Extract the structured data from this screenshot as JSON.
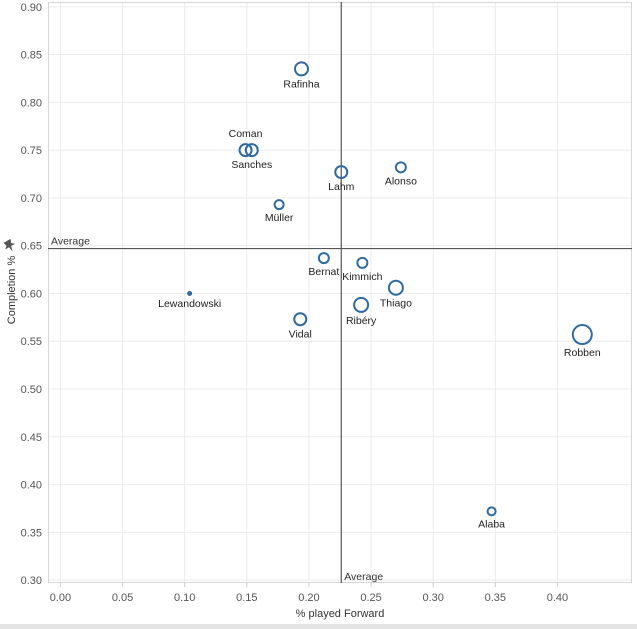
{
  "chart_data": {
    "type": "scatter",
    "xlabel": "% played Forward",
    "ylabel": "Completion %",
    "xlim": [
      -0.01,
      0.46
    ],
    "ylim": [
      0.297,
      0.905
    ],
    "x_ticks": [
      "0.00",
      "0.05",
      "0.10",
      "0.15",
      "0.20",
      "0.25",
      "0.30",
      "0.35",
      "0.40"
    ],
    "x_tick_values": [
      0,
      0.05,
      0.1,
      0.15,
      0.2,
      0.25,
      0.3,
      0.35,
      0.4
    ],
    "y_ticks": [
      "0.30",
      "0.35",
      "0.40",
      "0.45",
      "0.50",
      "0.55",
      "0.60",
      "0.65",
      "0.70",
      "0.75",
      "0.80",
      "0.85",
      "0.90"
    ],
    "y_tick_values": [
      0.3,
      0.35,
      0.4,
      0.45,
      0.5,
      0.55,
      0.6,
      0.65,
      0.7,
      0.75,
      0.8,
      0.85,
      0.9
    ],
    "grid": true,
    "marker_color": "#2f6aa0",
    "reference_lines": {
      "x_average": {
        "value": 0.226,
        "label": "Average"
      },
      "y_average": {
        "value": 0.647,
        "label": "Average"
      }
    },
    "points": [
      {
        "name": "Rafinha",
        "x": 0.194,
        "y": 0.835,
        "size": 6.5,
        "label_pos": "below"
      },
      {
        "name": "Coman",
        "x": 0.149,
        "y": 0.75,
        "size": 6,
        "label_pos": "above"
      },
      {
        "name": "Sanches",
        "x": 0.154,
        "y": 0.75,
        "size": 6,
        "label_pos": "below"
      },
      {
        "name": "Lahm",
        "x": 0.226,
        "y": 0.727,
        "size": 6,
        "label_pos": "below"
      },
      {
        "name": "Alonso",
        "x": 0.274,
        "y": 0.732,
        "size": 5,
        "label_pos": "below"
      },
      {
        "name": "Müller",
        "x": 0.176,
        "y": 0.693,
        "size": 4.5,
        "label_pos": "below"
      },
      {
        "name": "Bernat",
        "x": 0.212,
        "y": 0.637,
        "size": 5,
        "label_pos": "below"
      },
      {
        "name": "Kimmich",
        "x": 0.243,
        "y": 0.632,
        "size": 5,
        "label_pos": "below"
      },
      {
        "name": "Lewandowski",
        "x": 0.104,
        "y": 0.6,
        "size": 1.5,
        "label_pos": "below"
      },
      {
        "name": "Thiago",
        "x": 0.27,
        "y": 0.606,
        "size": 7,
        "label_pos": "below"
      },
      {
        "name": "Ribéry",
        "x": 0.242,
        "y": 0.588,
        "size": 7,
        "label_pos": "below"
      },
      {
        "name": "Vidal",
        "x": 0.193,
        "y": 0.573,
        "size": 6,
        "label_pos": "below"
      },
      {
        "name": "Robben",
        "x": 0.42,
        "y": 0.557,
        "size": 9.5,
        "label_pos": "below"
      },
      {
        "name": "Alaba",
        "x": 0.347,
        "y": 0.372,
        "size": 4,
        "label_pos": "below"
      }
    ]
  }
}
